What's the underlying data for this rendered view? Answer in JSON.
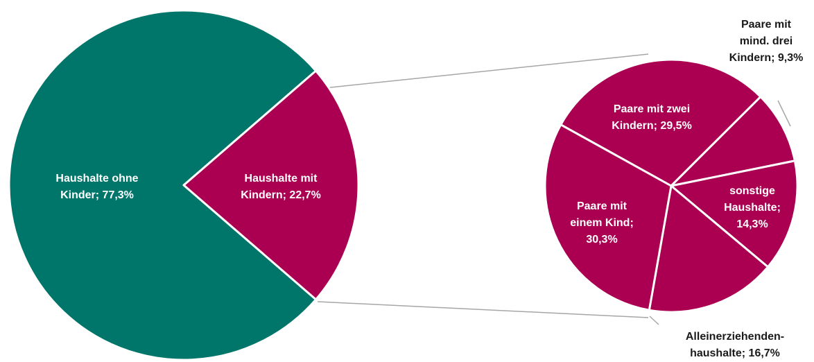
{
  "chart_data": {
    "type": "pie_of_pie",
    "pies": [
      {
        "values": [
          77.3,
          22.7
        ],
        "value_labels": [
          "Haushalte ohne Kinder; 77,3%",
          "Haushalte mit Kindern; 22,7%"
        ],
        "colors": [
          "#00766a",
          "#ab0052"
        ]
      },
      {
        "values": [
          29.5,
          9.3,
          14.3,
          16.7,
          30.3
        ],
        "value_labels": [
          "Paare mit zwei Kindern; 29,5%",
          "Paare mit mind. drei Kindern; 9,3%",
          "sonstige Haushalte; 14,3%",
          "Alleinerziehenden-haushalte; 16,7%",
          "Paare mit einem Kind; 30,3%"
        ],
        "colors": [
          "#ab0052",
          "#ab0052",
          "#ab0052",
          "#ab0052",
          "#ab0052"
        ]
      }
    ]
  }
}
